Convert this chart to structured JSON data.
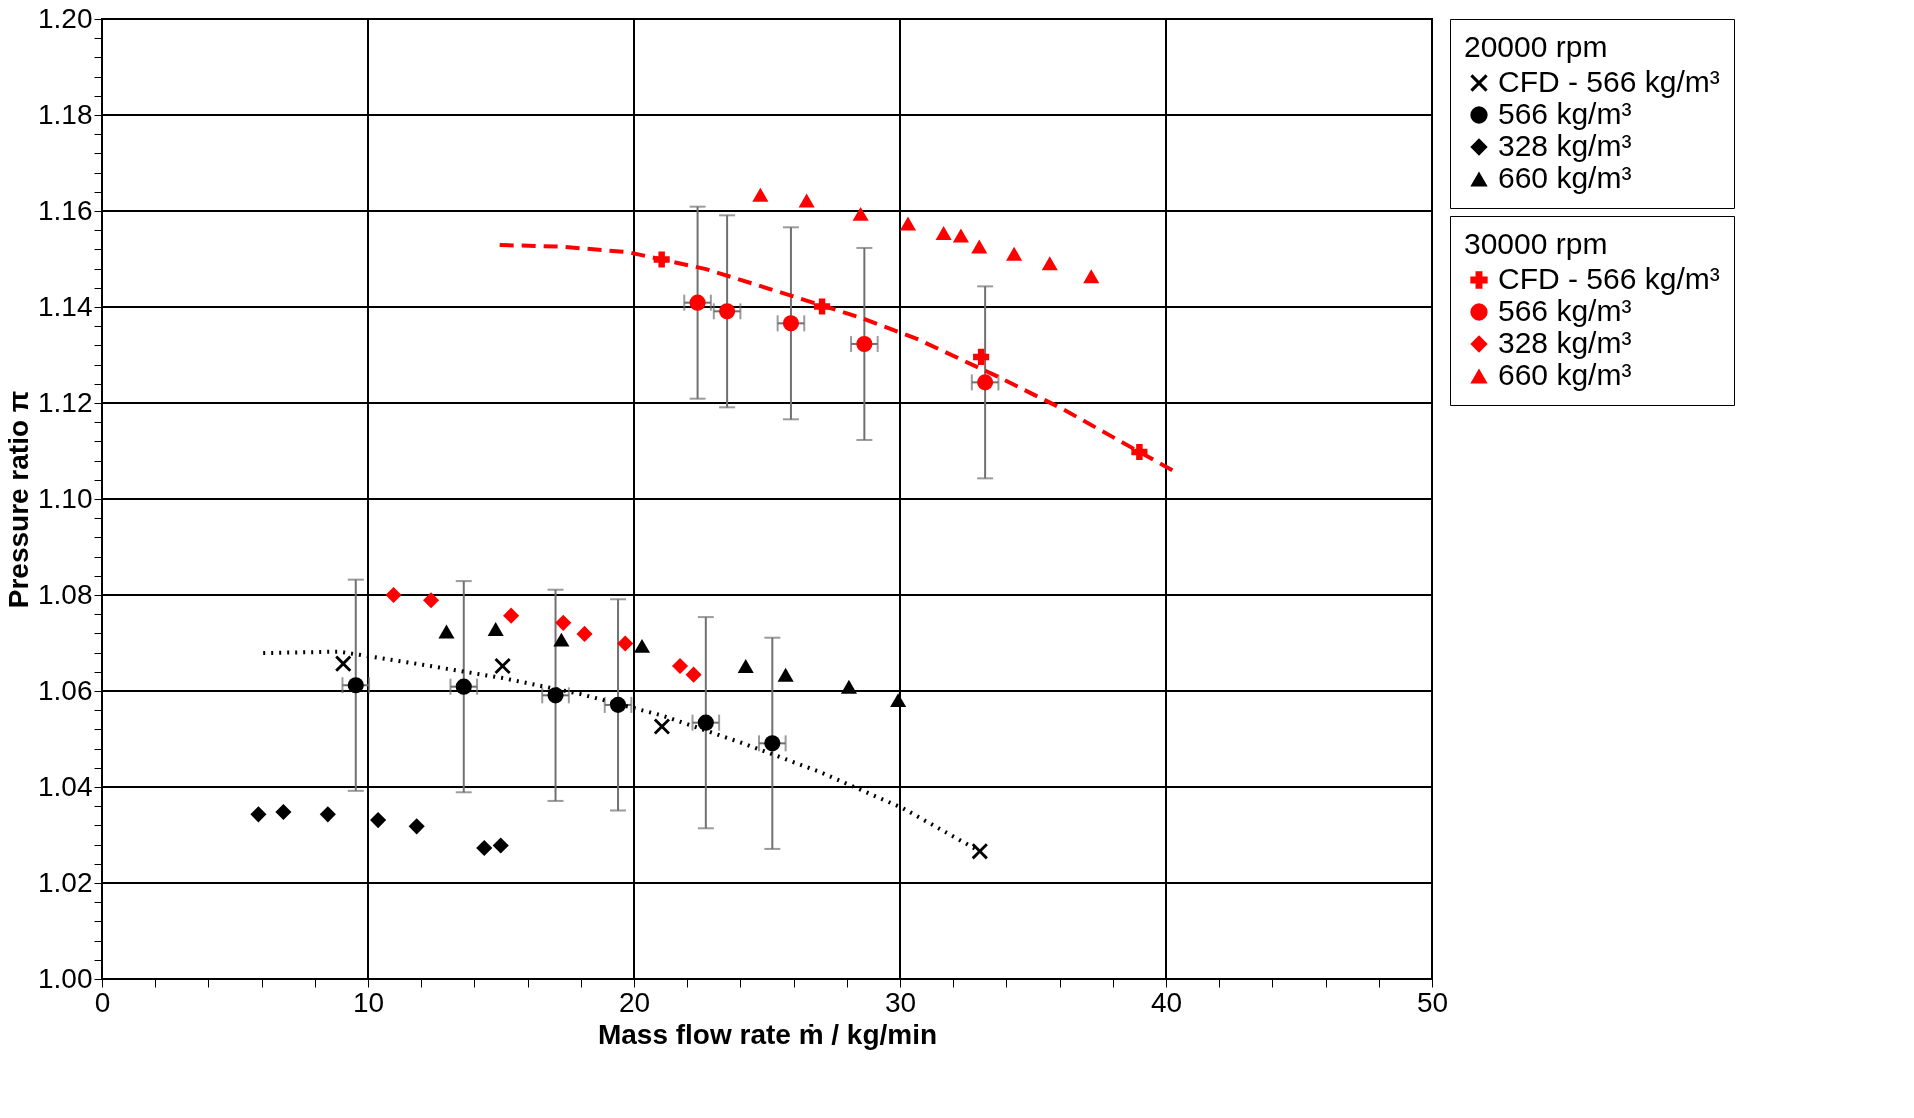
{
  "chart_data": {
    "type": "scatter",
    "xlabel": "Mass flow rate ṁ / kg/min",
    "ylabel": "Pressure ratio π",
    "legend_title": [
      "20000 rpm",
      "30000 rpm"
    ],
    "xlim": [
      0,
      50
    ],
    "ylim": [
      1.0,
      1.2
    ],
    "xticks": [
      0,
      {
        "value": 2,
        "label": null
      },
      {
        "value": 4,
        "label": null
      },
      {
        "value": 6,
        "label": null
      },
      {
        "value": 8,
        "label": null
      },
      10,
      {
        "value": 12,
        "label": null
      },
      {
        "value": 14,
        "label": null
      },
      {
        "value": 16,
        "label": null
      },
      {
        "value": 18,
        "label": null
      },
      20,
      {
        "value": 22,
        "label": null
      },
      {
        "value": 24,
        "label": null
      },
      {
        "value": 26,
        "label": null
      },
      {
        "value": 28,
        "label": null
      },
      30,
      {
        "value": 32,
        "label": null
      },
      {
        "value": 34,
        "label": null
      },
      {
        "value": 36,
        "label": null
      },
      {
        "value": 38,
        "label": null
      },
      40,
      {
        "value": 42,
        "label": null
      },
      {
        "value": 44,
        "label": null
      },
      {
        "value": 46,
        "label": null
      },
      {
        "value": 48,
        "label": null
      },
      50
    ],
    "yticks": [
      {
        "value": 1.0,
        "label": "1.00"
      },
      {
        "value": 1.004,
        "label": null
      },
      {
        "value": 1.008,
        "label": null
      },
      {
        "value": 1.012,
        "label": null
      },
      {
        "value": 1.016,
        "label": null
      },
      1.02,
      {
        "value": 1.024,
        "label": null
      },
      {
        "value": 1.028,
        "label": null
      },
      {
        "value": 1.032,
        "label": null
      },
      {
        "value": 1.036,
        "label": null
      },
      1.04,
      {
        "value": 1.044,
        "label": null
      },
      {
        "value": 1.048,
        "label": null
      },
      {
        "value": 1.052,
        "label": null
      },
      {
        "value": 1.056,
        "label": null
      },
      1.06,
      {
        "value": 1.064,
        "label": null
      },
      {
        "value": 1.068,
        "label": null
      },
      {
        "value": 1.072,
        "label": null
      },
      {
        "value": 1.076,
        "label": null
      },
      1.08,
      {
        "value": 1.084,
        "label": null
      },
      {
        "value": 1.088,
        "label": null
      },
      {
        "value": 1.092,
        "label": null
      },
      {
        "value": 1.096,
        "label": null
      },
      {
        "value": 1.1,
        "label": "1.10"
      },
      {
        "value": 1.104,
        "label": null
      },
      {
        "value": 1.108,
        "label": null
      },
      {
        "value": 1.112,
        "label": null
      },
      {
        "value": 1.116,
        "label": null
      },
      1.12,
      {
        "value": 1.124,
        "label": null
      },
      {
        "value": 1.128,
        "label": null
      },
      {
        "value": 1.132,
        "label": null
      },
      {
        "value": 1.136,
        "label": null
      },
      1.14,
      {
        "value": 1.144,
        "label": null
      },
      {
        "value": 1.148,
        "label": null
      },
      {
        "value": 1.152,
        "label": null
      },
      {
        "value": 1.156,
        "label": null
      },
      1.16,
      {
        "value": 1.164,
        "label": null
      },
      {
        "value": 1.168,
        "label": null
      },
      {
        "value": 1.172,
        "label": null
      },
      {
        "value": 1.176,
        "label": null
      },
      1.18,
      {
        "value": 1.184,
        "label": null
      },
      {
        "value": 1.188,
        "label": null
      },
      {
        "value": 1.192,
        "label": null
      },
      {
        "value": 1.196,
        "label": null
      },
      {
        "value": 1.2,
        "label": "1.20"
      }
    ],
    "grid": true,
    "legend": "right",
    "series": [
      {
        "name": "CFD - 566 kg/m³",
        "color": "#000000",
        "marker": "x",
        "x": [
          9.07,
          15.06,
          21.05,
          33.0
        ],
        "values": [
          1.0657,
          1.0652,
          1.0526,
          1.0266
        ]
      },
      {
        "name": "566 kg/m³",
        "color": "#000000",
        "marker": "circle",
        "x": [
          9.54,
          13.6,
          17.05,
          19.4,
          22.7,
          25.2
        ],
        "values": [
          1.0612,
          1.0609,
          1.0591,
          1.0571,
          1.0534,
          1.0491
        ],
        "errors": [
          0.022,
          0.022,
          0.022,
          0.022,
          0.022,
          0.022
        ],
        "xerrors": [
          0.5,
          0.5,
          0.5,
          0.5,
          0.5,
          0.5
        ]
      },
      {
        "name": "328 kg/m³",
        "color": "#000000",
        "marker": "diamond",
        "x": [
          5.88,
          6.82,
          8.49,
          10.38,
          11.83,
          14.37,
          14.99
        ],
        "values": [
          1.0343,
          1.0348,
          1.0343,
          1.0331,
          1.0318,
          1.0273,
          1.0278
        ]
      },
      {
        "name": "660 kg/m³",
        "color": "#000000",
        "marker": "triangle",
        "x": [
          12.95,
          14.8,
          17.27,
          20.3,
          24.2,
          25.7,
          28.08,
          29.93
        ],
        "values": [
          1.0724,
          1.0729,
          1.0707,
          1.0694,
          1.0652,
          1.0634,
          1.0609,
          1.0581
        ]
      },
      {
        "name": "CFD - 566 kg/m³",
        "color": "#ff0000",
        "marker": "cross",
        "x": [
          21.04,
          27.07,
          33.05,
          39.0
        ],
        "values": [
          1.1499,
          1.1401,
          1.1296,
          1.1098
        ]
      },
      {
        "name": "566 kg/m³",
        "color": "#ff0000",
        "marker": "circle",
        "x": [
          22.39,
          23.5,
          25.9,
          28.66,
          33.2
        ],
        "values": [
          1.1409,
          1.1391,
          1.1366,
          1.1323,
          1.1243
        ],
        "errors": [
          0.02,
          0.02,
          0.02,
          0.02,
          0.02
        ],
        "xerrors": [
          0.5,
          0.5,
          0.5,
          0.5,
          0.5
        ]
      },
      {
        "name": "328 kg/m³",
        "color": "#ff0000",
        "marker": "diamond",
        "x": [
          10.96,
          12.37,
          15.38,
          17.34,
          18.14,
          19.67,
          21.73,
          22.24
        ],
        "values": [
          1.08,
          1.0789,
          1.0757,
          1.0742,
          1.0719,
          1.0699,
          1.0652,
          1.0634
        ]
      },
      {
        "name": "660 kg/m³",
        "color": "#ff0000",
        "marker": "triangle",
        "x": [
          24.75,
          26.49,
          28.52,
          30.3,
          31.64,
          32.29,
          32.98,
          34.29,
          35.63,
          37.19
        ],
        "values": [
          1.1634,
          1.1622,
          1.1594,
          1.1574,
          1.1554,
          1.1549,
          1.1526,
          1.1511,
          1.1491,
          1.1464
        ]
      },
      {
        "type": "line",
        "color": "#000000",
        "marker": "none",
        "line_style": "dotted",
        "x": [
          6.06,
          8.9,
          11.8,
          15.06,
          17.96,
          21.05,
          24.1,
          27.0,
          30.1,
          33.0
        ],
        "values": [
          1.0679,
          1.0682,
          1.0657,
          1.0627,
          1.0594,
          1.0549,
          1.0491,
          1.0431,
          1.0356,
          1.0266
        ]
      },
      {
        "type": "line",
        "color": "#ff0000",
        "marker": "none",
        "line_style": "dashed",
        "x": [
          14.95,
          17.2,
          19.8,
          22.7,
          25.6,
          28.5,
          30.66,
          33.56,
          36.1,
          39.0,
          40.3
        ],
        "values": [
          1.1529,
          1.1526,
          1.1514,
          1.1479,
          1.1429,
          1.1378,
          1.1333,
          1.1258,
          1.1188,
          1.1098,
          1.1058
        ]
      }
    ]
  }
}
